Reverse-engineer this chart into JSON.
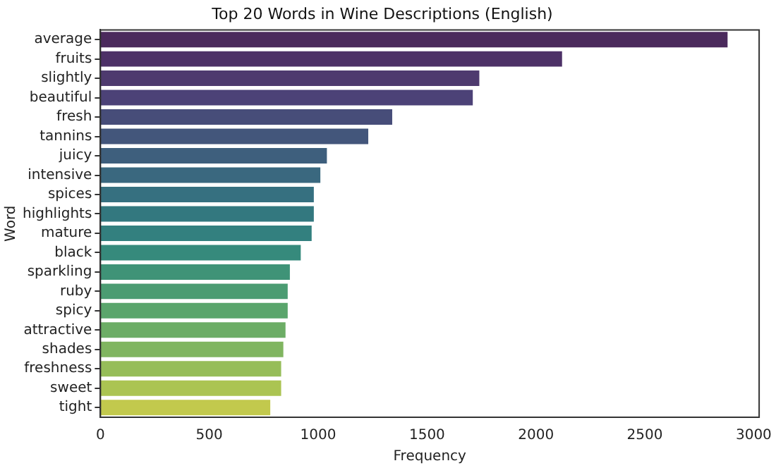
{
  "chart_data": {
    "type": "bar",
    "orientation": "horizontal",
    "title": "Top 20 Words in Wine Descriptions (English)",
    "xlabel": "Frequency",
    "ylabel": "Word",
    "categories": [
      "average",
      "fruits",
      "slightly",
      "beautiful",
      "fresh",
      "tannins",
      "juicy",
      "intensive",
      "spices",
      "highlights",
      "mature",
      "black",
      "sparkling",
      "ruby",
      "spicy",
      "attractive",
      "shades",
      "freshness",
      "sweet",
      "tight"
    ],
    "values": [
      2880,
      2120,
      1740,
      1710,
      1340,
      1230,
      1040,
      1010,
      980,
      980,
      970,
      920,
      870,
      860,
      860,
      850,
      840,
      830,
      830,
      780
    ],
    "colors": [
      "#4b2a5c",
      "#4d3167",
      "#4e3a6e",
      "#4c4277",
      "#474d79",
      "#43567b",
      "#3e5f7d",
      "#3a687f",
      "#367080",
      "#33787f",
      "#33807f",
      "#368a7c",
      "#3f9377",
      "#4b9c72",
      "#5aa56c",
      "#6cad66",
      "#80b560",
      "#96bd59",
      "#abc452",
      "#c2c94d"
    ],
    "xlim": [
      0,
      3025
    ],
    "xticks": [
      0,
      500,
      1000,
      1500,
      2000,
      2500,
      3000
    ],
    "grid": false,
    "legend": false
  }
}
